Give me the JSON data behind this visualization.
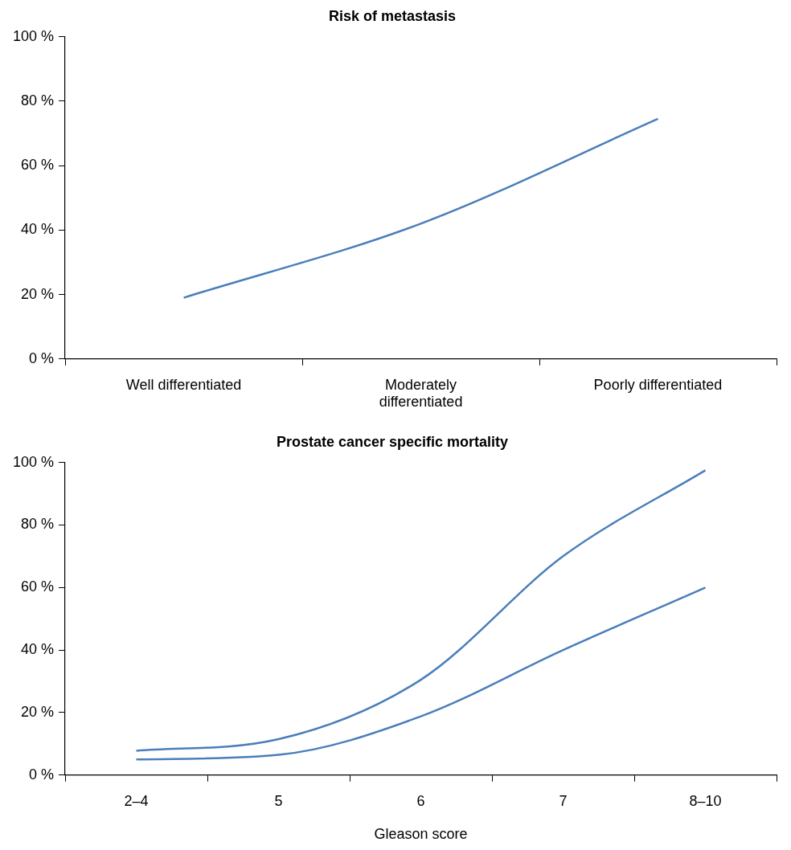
{
  "chart_data": [
    {
      "type": "line",
      "title": "Risk of metastasis",
      "categories": [
        "Well differentiated",
        "Moderately differentiated",
        "Poorly differentiated"
      ],
      "series": [
        {
          "color": "#4a7ebb",
          "values": [
            19,
            42,
            74.5
          ]
        }
      ],
      "ylim": [
        0,
        100
      ],
      "yticks": [
        {
          "value": 0,
          "label": "0 %"
        },
        {
          "value": 20,
          "label": "20 %"
        },
        {
          "value": 40,
          "label": "40 %"
        },
        {
          "value": 60,
          "label": "60 %"
        },
        {
          "value": 80,
          "label": "80 %"
        },
        {
          "value": 100,
          "label": "100 %"
        }
      ],
      "grid": false,
      "legend": false,
      "marker": "none",
      "line_style": "solid"
    },
    {
      "type": "line",
      "title": "Prostate cancer specific mortality",
      "xlabel": "Gleason score",
      "categories": [
        "2–4",
        "5",
        "6",
        "7",
        "8–10"
      ],
      "series": [
        {
          "color": "#4a7ebb",
          "values": [
            7.8,
            11.5,
            30.5,
            70,
            97.5
          ]
        },
        {
          "color": "#4a7ebb",
          "values": [
            5,
            6.5,
            18.8,
            40,
            60
          ]
        }
      ],
      "ylim": [
        0,
        100
      ],
      "yticks": [
        {
          "value": 0,
          "label": "0 %"
        },
        {
          "value": 20,
          "label": "20 %"
        },
        {
          "value": 40,
          "label": "40 %"
        },
        {
          "value": 60,
          "label": "60 %"
        },
        {
          "value": 80,
          "label": "80 %"
        },
        {
          "value": 100,
          "label": "100 %"
        }
      ],
      "grid": false,
      "legend": false,
      "marker": "none",
      "line_style": "solid"
    }
  ]
}
